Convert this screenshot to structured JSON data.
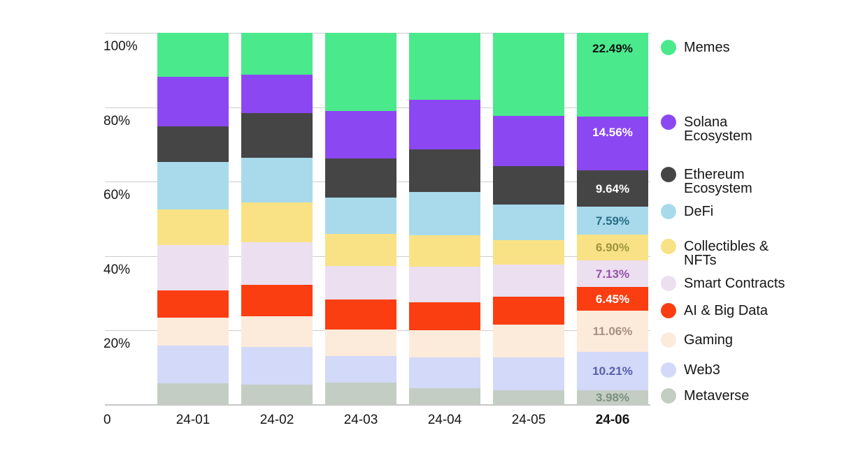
{
  "page": {
    "background": "#ffffff",
    "description_text_visible": ""
  },
  "chart_data": {
    "type": "bar",
    "variant": "stacked-100-percent-column",
    "title": "",
    "xlabel": "",
    "ylabel": "",
    "ylim": [
      0,
      100
    ],
    "grid": true,
    "legend_position": "right",
    "categories": [
      "24-01",
      "24-02",
      "24-03",
      "24-04",
      "24-05",
      "24-06"
    ],
    "bold_category_index": 5,
    "y_axis_ticks": [
      {
        "value": 100,
        "label": "100%"
      },
      {
        "value": 80,
        "label": "80%"
      },
      {
        "value": 60,
        "label": "60%"
      },
      {
        "value": 40,
        "label": "40%"
      },
      {
        "value": 20,
        "label": "20%"
      },
      {
        "value": 0,
        "label": "0"
      }
    ],
    "value_labels_note": "percent labels shown on last bar (24-06) only",
    "series": [
      {
        "name": "Memes",
        "legend_lines": [
          "Memes"
        ],
        "color": "#4AE98C",
        "label_color": "#111111",
        "values": [
          11.9,
          11.3,
          21.0,
          18.0,
          22.3,
          22.49
        ],
        "last_label": "22.49%"
      },
      {
        "name": "Solana Ecosystem",
        "legend_lines": [
          "Solana",
          "Ecosystem"
        ],
        "color": "#8B48F2",
        "label_color": "#FFFFFF",
        "values": [
          13.3,
          10.2,
          12.7,
          13.4,
          13.6,
          14.56
        ],
        "last_label": "14.56%"
      },
      {
        "name": "Ethereum Ecosystem",
        "legend_lines": [
          "Ethereum",
          "Ecosystem"
        ],
        "color": "#454545",
        "label_color": "#FFFFFF",
        "values": [
          9.5,
          12.0,
          10.6,
          11.4,
          10.3,
          9.64
        ],
        "last_label": "9.64%"
      },
      {
        "name": "DeFi",
        "legend_lines": [
          "DeFi"
        ],
        "color": "#A8DAEC",
        "label_color": "#2A6E85",
        "values": [
          12.7,
          12.1,
          9.8,
          11.6,
          9.5,
          7.59
        ],
        "last_label": "7.59%"
      },
      {
        "name": "Collectibles & NFTs",
        "legend_lines": [
          "Collectibles &",
          "NFTs"
        ],
        "color": "#F9E285",
        "label_color": "#9E9440",
        "values": [
          9.6,
          10.6,
          8.6,
          8.4,
          6.6,
          6.9
        ],
        "last_label": "6.90%"
      },
      {
        "name": "Smart Contracts",
        "legend_lines": [
          "Smart Contracts"
        ],
        "color": "#EBDFF0",
        "label_color": "#9553A8",
        "values": [
          12.2,
          11.5,
          8.9,
          9.6,
          8.6,
          7.13
        ],
        "last_label": "7.13%"
      },
      {
        "name": "AI & Big Data",
        "legend_lines": [
          "AI & Big Data"
        ],
        "color": "#FB3E11",
        "label_color": "#FFFFFF",
        "values": [
          7.3,
          8.4,
          8.1,
          7.5,
          7.5,
          6.45
        ],
        "last_label": "6.45%"
      },
      {
        "name": "Gaming",
        "legend_lines": [
          "Gaming"
        ],
        "color": "#FCEBDB",
        "label_color": "#A89080",
        "values": [
          7.5,
          8.3,
          7.2,
          7.3,
          8.8,
          11.06
        ],
        "last_label": "11.06%"
      },
      {
        "name": "Web3",
        "legend_lines": [
          "Web3"
        ],
        "color": "#D3D9F8",
        "label_color": "#5560AE",
        "values": [
          10.2,
          10.1,
          7.2,
          8.4,
          8.9,
          10.21
        ],
        "last_label": "10.21%"
      },
      {
        "name": "Metaverse",
        "legend_lines": [
          "Metaverse"
        ],
        "color": "#C4CDC4",
        "label_color": "#7A927F",
        "values": [
          5.8,
          5.5,
          5.9,
          4.4,
          3.9,
          3.98
        ],
        "last_label": "3.98%"
      }
    ]
  }
}
